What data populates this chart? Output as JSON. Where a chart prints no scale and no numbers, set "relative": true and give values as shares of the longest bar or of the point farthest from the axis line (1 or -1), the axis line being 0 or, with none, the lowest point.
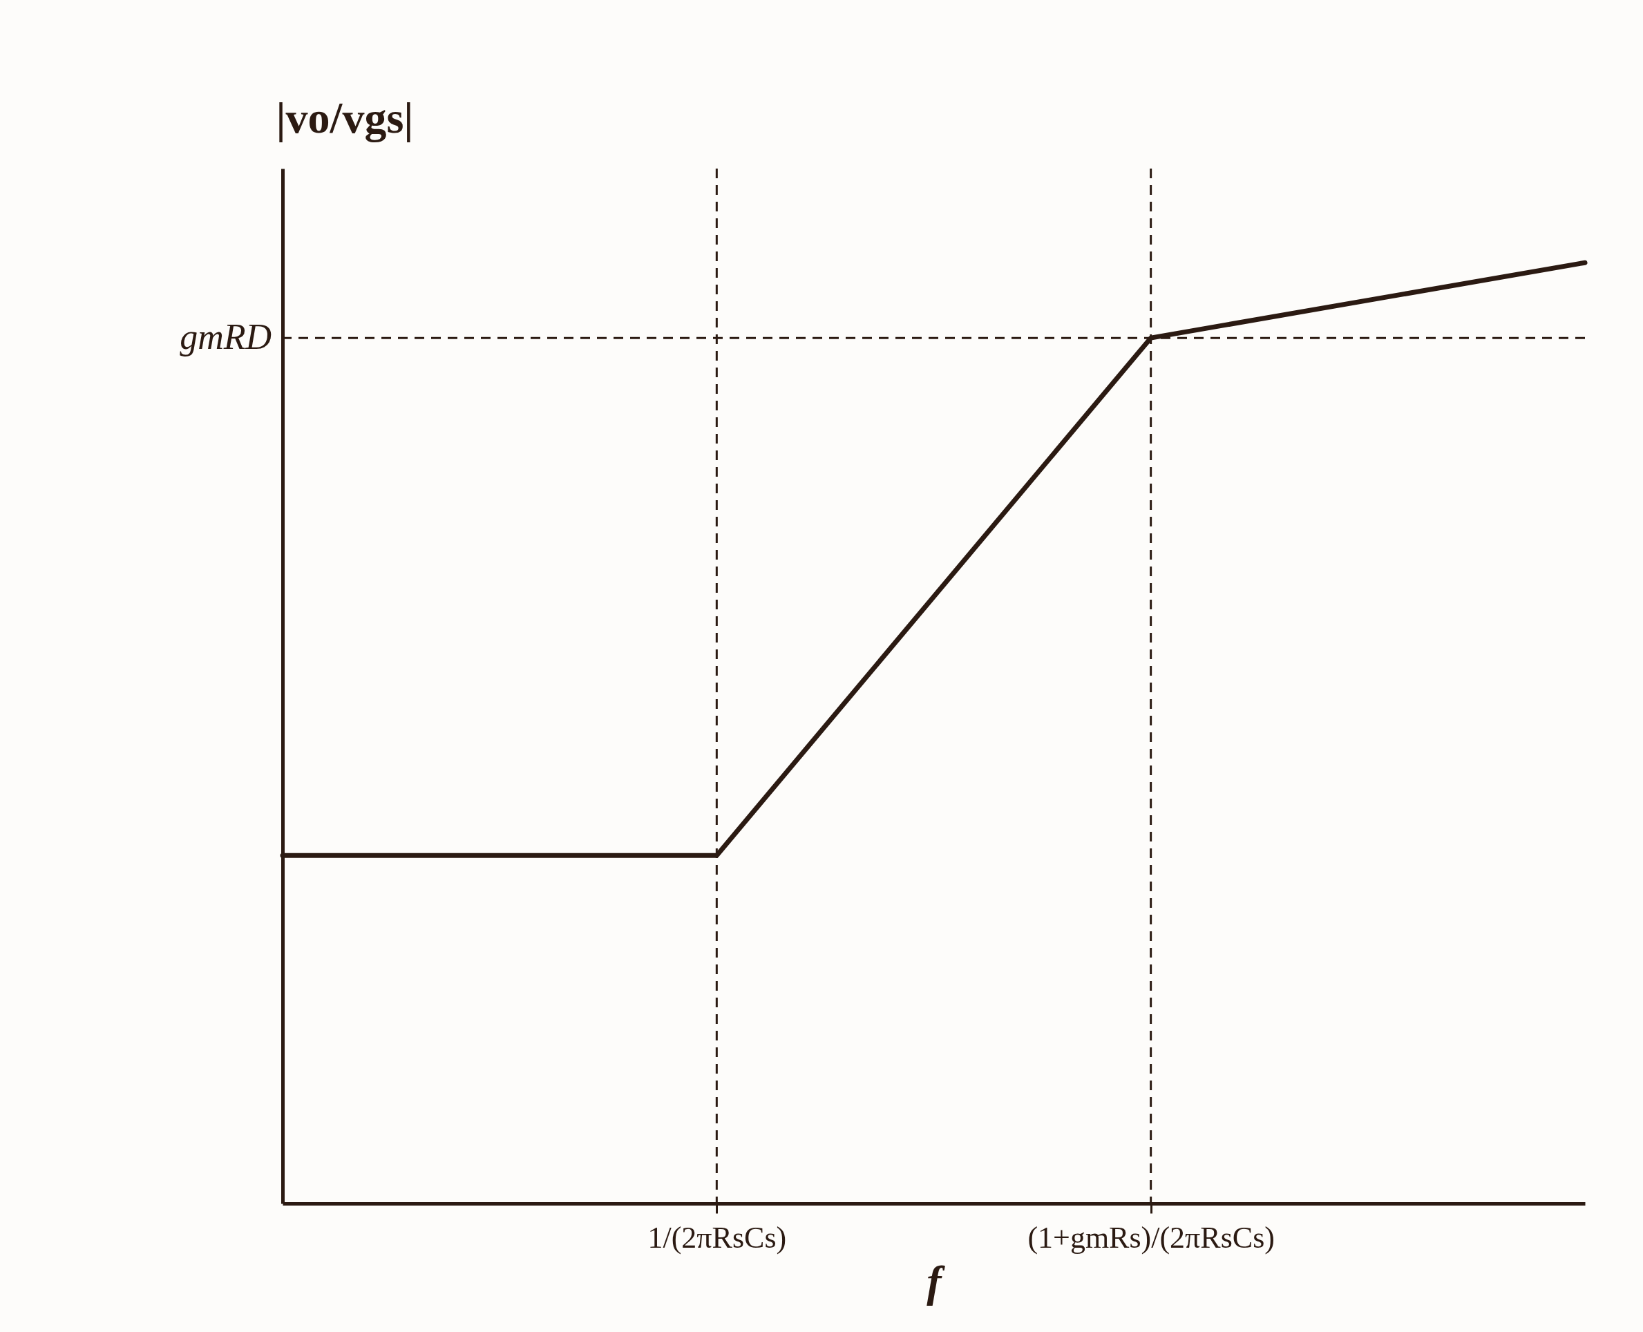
{
  "chart_data": {
    "type": "line",
    "relative": true,
    "xlabel": "f",
    "ylabel": "|vo/vgs|",
    "categories": [
      null,
      "1/(2πRsCs)",
      "(1+gmRs)/(2πRsCs)",
      null
    ],
    "series": [
      {
        "color": "#2b1a12",
        "values": [
          0.37,
          0.37,
          0.92,
          1.0
        ]
      }
    ],
    "ref_lines": [
      {
        "axis": "y",
        "value": 0.92,
        "label": "gmRD",
        "line_style": "dashed"
      },
      {
        "axis": "x",
        "value": "1/(2πRsCs)",
        "line_style": "dashed"
      },
      {
        "axis": "x",
        "value": "(1+gmRs)/(2πRsCs)",
        "line_style": "dashed"
      }
    ],
    "grid": false,
    "marker": "none",
    "line_style": "solid"
  }
}
